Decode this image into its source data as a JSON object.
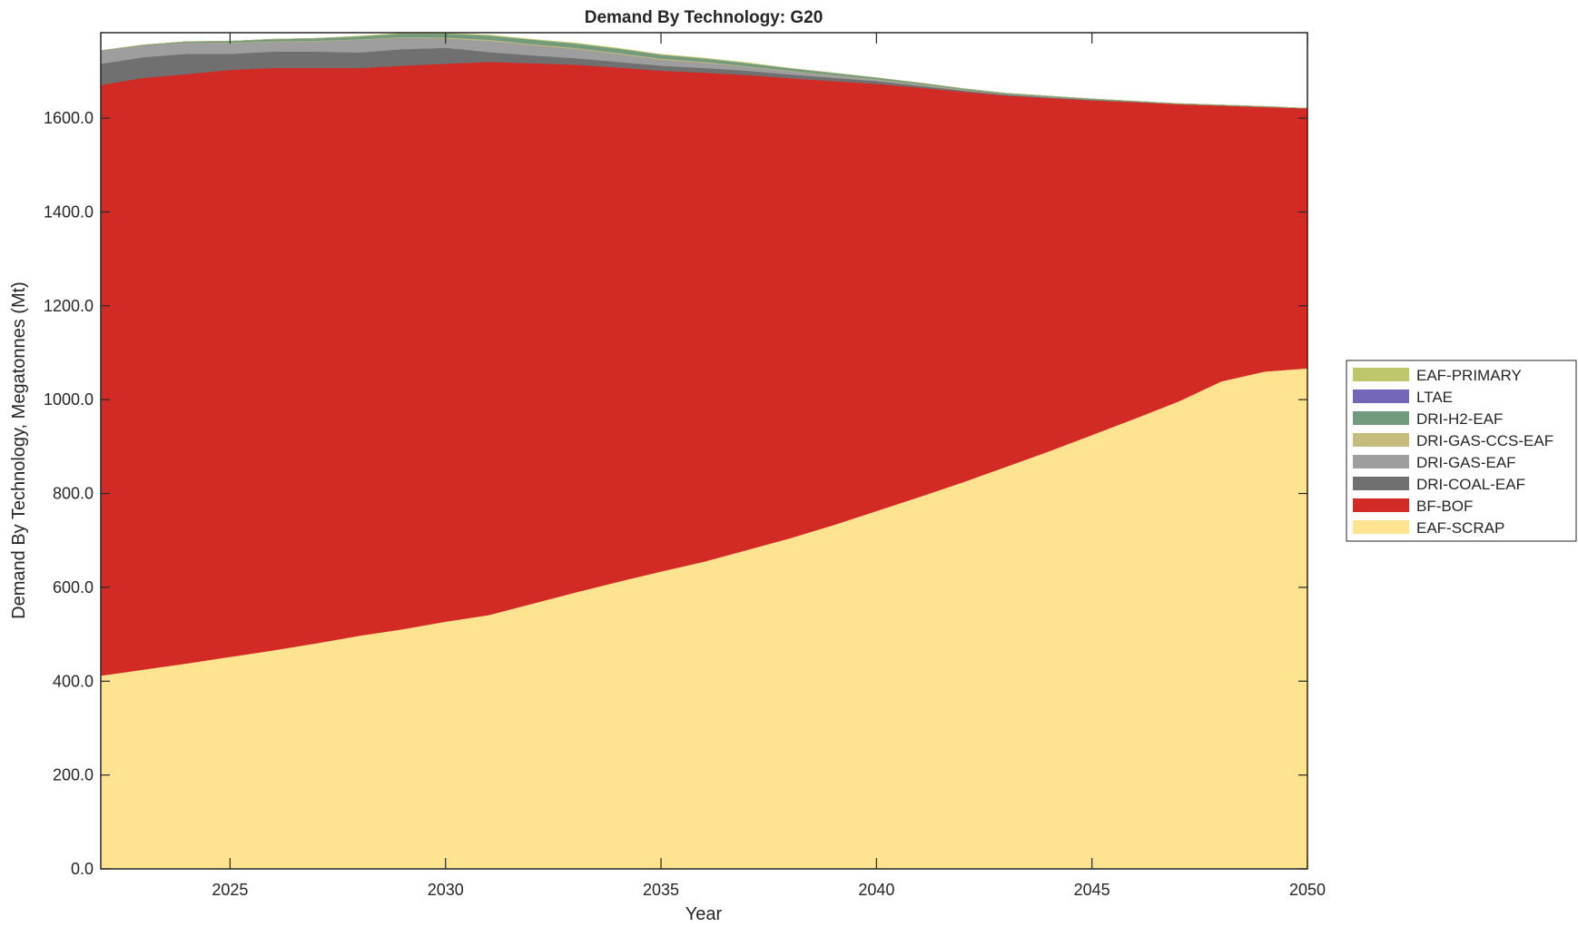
{
  "chart_data": {
    "type": "area",
    "stacked": true,
    "title": "Demand By Technology: G20",
    "xlabel": "Year",
    "ylabel": "Demand By Technology, Megatonnes (Mt)",
    "xlim": [
      2022,
      2050
    ],
    "ylim": [
      0,
      1782
    ],
    "xticks": [
      2025,
      2030,
      2035,
      2040,
      2045,
      2050
    ],
    "yticks": [
      0,
      200,
      400,
      600,
      800,
      1000,
      1200,
      1400,
      1600
    ],
    "ytick_labels": [
      "0.0",
      "200.0",
      "400.0",
      "600.0",
      "800.0",
      "1000.0",
      "1200.0",
      "1400.0",
      "1600.0"
    ],
    "xtick_labels": [
      "2025",
      "2030",
      "2035",
      "2040",
      "2045",
      "2050"
    ],
    "legend_position": "outside-right",
    "grid": false,
    "x": [
      2022,
      2023,
      2024,
      2025,
      2026,
      2027,
      2028,
      2029,
      2030,
      2031,
      2032,
      2033,
      2034,
      2035,
      2036,
      2037,
      2038,
      2039,
      2040,
      2041,
      2042,
      2043,
      2044,
      2045,
      2046,
      2047,
      2048,
      2049,
      2050
    ],
    "series": [
      {
        "name": "EAF-SCRAP",
        "color": "#fee391",
        "values": [
          412,
          425,
          438,
          452,
          466,
          481,
          497,
          511,
          527,
          541,
          565,
          589,
          612,
          634,
          655,
          680,
          705,
          733,
          763,
          793,
          824,
          857,
          890,
          925,
          960,
          996,
          1039,
          1060,
          1067
        ]
      },
      {
        "name": "BF-BOF",
        "color": "#d22a24",
        "values": [
          1259,
          1261,
          1256,
          1251,
          1241,
          1226,
          1210,
          1201,
          1189,
          1179,
          1152,
          1125,
          1096,
          1067,
          1042,
          1012,
          980,
          946,
          910,
          872,
          832,
          791,
          753,
          713,
          674,
          634,
          588,
          564,
          554
        ]
      },
      {
        "name": "DRI-COAL-EAF",
        "color": "#707070",
        "values": [
          45,
          44,
          43,
          34,
          35,
          35,
          33,
          35,
          34,
          21,
          17,
          14,
          12,
          11,
          10,
          9,
          8,
          7,
          6,
          4,
          3,
          2,
          1,
          1,
          1,
          0,
          0,
          0,
          0
        ]
      },
      {
        "name": "DRI-GAS-EAF",
        "color": "#9e9e9e",
        "values": [
          28,
          25,
          24,
          23,
          21,
          22,
          27,
          25,
          20,
          24,
          22,
          20,
          17,
          13,
          11,
          9,
          7,
          5,
          3,
          2,
          1,
          1,
          1,
          0,
          0,
          0,
          0,
          0,
          0
        ]
      },
      {
        "name": "DRI-GAS-CCS-EAF",
        "color": "#c4bb7c",
        "values": [
          0,
          0,
          0,
          1,
          1,
          1,
          1,
          1,
          2,
          2,
          2,
          2,
          2,
          2,
          2,
          1,
          1,
          1,
          1,
          1,
          1,
          0,
          0,
          0,
          0,
          0,
          0,
          0,
          0
        ]
      },
      {
        "name": "DRI-H2-EAF",
        "color": "#729a7c",
        "values": [
          0,
          1,
          2,
          3,
          4,
          5,
          6,
          7,
          8,
          9,
          9,
          9,
          9,
          8,
          7,
          6,
          5,
          4,
          3,
          3,
          2,
          2,
          2,
          2,
          1,
          1,
          1,
          1,
          0
        ]
      },
      {
        "name": "LTAE",
        "color": "#7366b8",
        "values": [
          0,
          0,
          0,
          0,
          0,
          0,
          0,
          0,
          0,
          0,
          0,
          0,
          0,
          0,
          0,
          0,
          0,
          0,
          0,
          0,
          0,
          0,
          0,
          0,
          0,
          0,
          0,
          0,
          0
        ]
      },
      {
        "name": "EAF-PRIMARY",
        "color": "#bdc66a",
        "values": [
          0,
          0,
          0,
          0,
          0,
          0,
          1,
          1,
          1,
          1,
          1,
          1,
          1,
          1,
          1,
          1,
          0,
          0,
          0,
          0,
          0,
          0,
          0,
          0,
          0,
          0,
          0,
          0,
          0
        ]
      }
    ],
    "legend_order": [
      "EAF-PRIMARY",
      "LTAE",
      "DRI-H2-EAF",
      "DRI-GAS-CCS-EAF",
      "DRI-GAS-EAF",
      "DRI-COAL-EAF",
      "BF-BOF",
      "EAF-SCRAP"
    ]
  }
}
